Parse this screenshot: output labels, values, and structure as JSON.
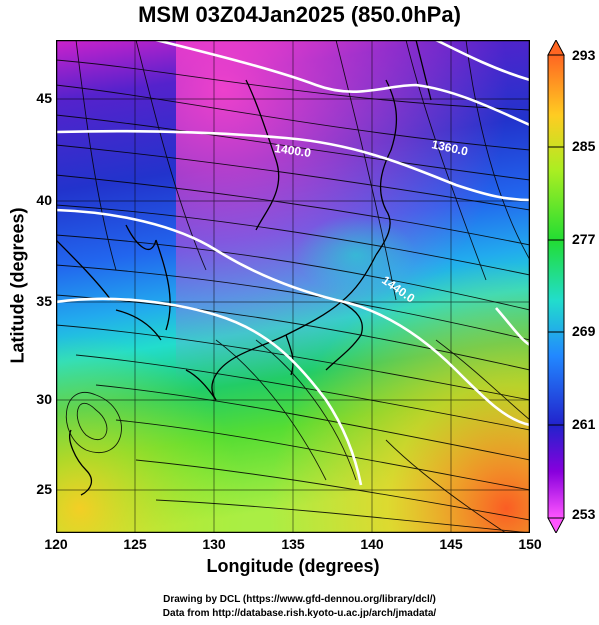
{
  "title": "MSM 03Z04Jan2025 (850.0hPa)",
  "x_axis": {
    "label": "Longitude (degrees)",
    "ticks": [
      "120",
      "125",
      "130",
      "135",
      "140",
      "145",
      "150"
    ],
    "range": [
      120,
      150
    ]
  },
  "y_axis": {
    "label": "Latitude  (degrees)",
    "ticks": [
      "25",
      "30",
      "35",
      "40",
      "45"
    ],
    "range": [
      22.4,
      47.6
    ]
  },
  "colorbar": {
    "ticks": [
      "293",
      "285",
      "277",
      "269",
      "261",
      "253"
    ],
    "range": [
      253,
      293
    ],
    "colors": [
      "#ff55ff",
      "#8800dd",
      "#2222cc",
      "#2288ff",
      "#22ddcc",
      "#22dd33",
      "#aaee22",
      "#ffcc22",
      "#ff6622"
    ]
  },
  "contours": [
    {
      "label": "1400.0"
    },
    {
      "label": "1360.0"
    },
    {
      "label": "1440.0"
    }
  ],
  "credits": {
    "line1": "Drawing by DCL (https://www.gfd-dennou.org/library/dcl/)",
    "line2": "Data from http://database.rish.kyoto-u.ac.jp/arch/jmadata/"
  }
}
